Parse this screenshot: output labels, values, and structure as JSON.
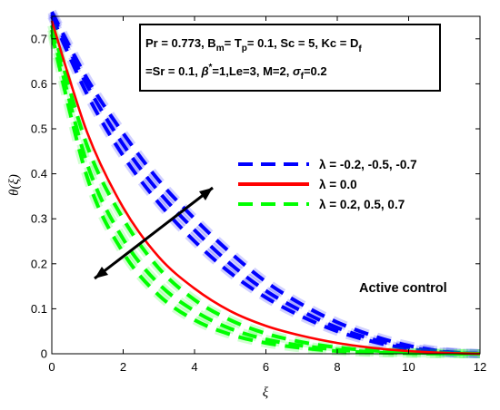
{
  "chart_data": {
    "type": "line",
    "xlabel": "ξ",
    "ylabel": "θ(ξ)",
    "xlim": [
      0,
      12
    ],
    "ylim": [
      0,
      0.75
    ],
    "x_ticks": [
      "0",
      "2",
      "4",
      "6",
      "8",
      "10",
      "12"
    ],
    "y_ticks": [
      "0",
      "0.1",
      "0.2",
      "0.3",
      "0.4",
      "0.5",
      "0.6",
      "0.7"
    ],
    "grid": false,
    "legend_position": "center-right",
    "legend": [
      {
        "label": "λ = -0.2, -0.5, -0.7",
        "color": "#0000ff",
        "style": "dashed"
      },
      {
        "label": "λ = 0.0",
        "color": "#ff0000",
        "style": "solid"
      },
      {
        "label": "λ = 0.2, 0.5, 0.7",
        "color": "#00ff00",
        "style": "dashed"
      }
    ],
    "parameter_box": {
      "line1": [
        "Pr = 0.773, B",
        "m",
        "= T",
        "p",
        "= 0.1, Sc = 5, Kc = D",
        "f"
      ],
      "line2": [
        "=Sr = 0.1,  ",
        "β",
        "*",
        "=1,Le=3, M=2,  ",
        "σ",
        "f",
        "=0.2"
      ]
    },
    "annotation": "Active control",
    "series": [
      {
        "name": "λ = -0.2",
        "color": "#0000ff",
        "style": "dashed",
        "x": [
          0,
          1,
          2,
          3,
          4,
          5,
          6,
          7,
          8,
          9,
          10,
          11,
          12
        ],
        "y": [
          0.76,
          0.61,
          0.49,
          0.385,
          0.3,
          0.225,
          0.16,
          0.11,
          0.07,
          0.04,
          0.018,
          0.005,
          0.0
        ]
      },
      {
        "name": "λ = -0.5",
        "color": "#0000ff",
        "style": "dashed",
        "x": [
          0,
          1,
          2,
          3,
          4,
          5,
          6,
          7,
          8,
          9,
          10,
          11,
          12
        ],
        "y": [
          0.755,
          0.595,
          0.465,
          0.36,
          0.275,
          0.2,
          0.14,
          0.095,
          0.058,
          0.032,
          0.014,
          0.004,
          0.0
        ]
      },
      {
        "name": "λ = -0.7",
        "color": "#0000ff",
        "style": "dashed",
        "x": [
          0,
          1,
          2,
          3,
          4,
          5,
          6,
          7,
          8,
          9,
          10,
          11,
          12
        ],
        "y": [
          0.75,
          0.575,
          0.44,
          0.335,
          0.25,
          0.18,
          0.125,
          0.083,
          0.05,
          0.027,
          0.011,
          0.003,
          0.0
        ]
      },
      {
        "name": "λ = 0.0",
        "color": "#ff0000",
        "style": "solid",
        "x": [
          0,
          1,
          2,
          3,
          4,
          5,
          6,
          7,
          8,
          9,
          10,
          11,
          12
        ],
        "y": [
          0.74,
          0.49,
          0.325,
          0.215,
          0.145,
          0.095,
          0.062,
          0.04,
          0.024,
          0.013,
          0.006,
          0.002,
          0.0
        ]
      },
      {
        "name": "λ = 0.2",
        "color": "#00ff00",
        "style": "dashed",
        "x": [
          0,
          1,
          2,
          3,
          4,
          5,
          6,
          7,
          8,
          9,
          10,
          11,
          12
        ],
        "y": [
          0.73,
          0.46,
          0.3,
          0.19,
          0.12,
          0.075,
          0.045,
          0.026,
          0.014,
          0.007,
          0.003,
          0.001,
          0.0
        ]
      },
      {
        "name": "λ = 0.5",
        "color": "#00ff00",
        "style": "dashed",
        "x": [
          0,
          1,
          2,
          3,
          4,
          5,
          6,
          7,
          8,
          9,
          10,
          11,
          12
        ],
        "y": [
          0.72,
          0.42,
          0.255,
          0.155,
          0.095,
          0.056,
          0.032,
          0.018,
          0.009,
          0.004,
          0.002,
          0.0005,
          0.0
        ]
      },
      {
        "name": "λ = 0.7",
        "color": "#00ff00",
        "style": "dashed",
        "x": [
          0,
          1,
          2,
          3,
          4,
          5,
          6,
          7,
          8,
          9,
          10,
          11,
          12
        ],
        "y": [
          0.71,
          0.39,
          0.225,
          0.13,
          0.075,
          0.043,
          0.024,
          0.013,
          0.006,
          0.003,
          0.001,
          0.0003,
          0.0
        ]
      }
    ]
  }
}
